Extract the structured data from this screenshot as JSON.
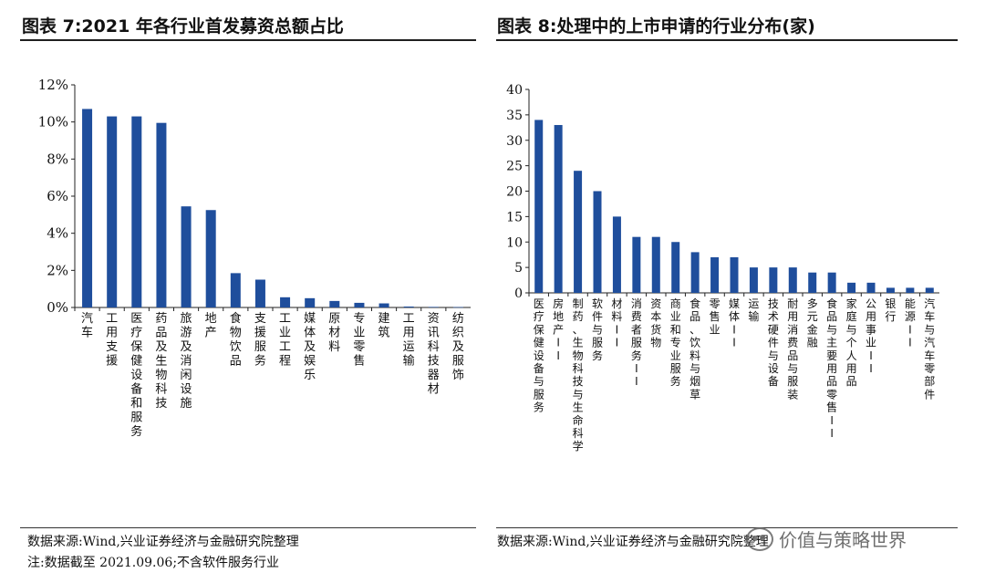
{
  "left_panel": {
    "title": "图表 7:2021 年各行业首发募资总额占比",
    "source": "数据来源:Wind,兴业证券经济与金融研究院整理",
    "note": "注:数据截至 2021.09.06;不含软件服务行业"
  },
  "right_panel": {
    "title": "图表 8:处理中的上市申请的行业分布(家)",
    "source": "数据来源:Wind,兴业证券经济与金融研究院整理"
  },
  "watermark": {
    "text": "价值与策略世界"
  },
  "colors": {
    "bar": "#1f4e9c",
    "axis": "#222222",
    "text": "#111111"
  },
  "chart_data": [
    {
      "type": "bar",
      "title": "2021 年各行业首发募资总额占比",
      "categories": [
        "汽车",
        "工用支援",
        "医疗保健设备和服务",
        "药品及生物科技",
        "旅游及消闲设施",
        "地产",
        "食物饮品",
        "支援服务",
        "工业工程",
        "媒体及娱乐",
        "原材料",
        "专业零售",
        "建筑",
        "工用运输",
        "资讯科技器材",
        "纺织及服饰"
      ],
      "values": [
        10.7,
        10.3,
        10.3,
        9.95,
        5.45,
        5.25,
        1.85,
        1.5,
        0.55,
        0.5,
        0.35,
        0.25,
        0.22,
        0.05,
        0.03,
        0.02
      ],
      "ylim": [
        0,
        12
      ],
      "yticks": [
        0,
        2,
        4,
        6,
        8,
        10,
        12
      ],
      "ytick_labels": [
        "0%",
        "2%",
        "4%",
        "6%",
        "8%",
        "10%",
        "12%"
      ],
      "xlabel": "",
      "ylabel": "",
      "grid": false
    },
    {
      "type": "bar",
      "title": "处理中的上市申请的行业分布(家)",
      "categories": [
        "医疗保健设备与服务",
        "房地产II",
        "制药、生物科技与生命科学",
        "软件与服务",
        "材料II",
        "消费者服务II",
        "资本货物",
        "商业和专业服务",
        "食品、饮料与烟草",
        "零售业",
        "媒体II",
        "运输",
        "技术硬件与设备",
        "耐用消费品与服装",
        "多元金融",
        "食品与主要用品零售II",
        "家庭与个人用品",
        "公用事业II",
        "银行",
        "能源II",
        "汽车与汽车零部件"
      ],
      "values": [
        34,
        33,
        24,
        20,
        15,
        11,
        11,
        10,
        8,
        7,
        7,
        5,
        5,
        5,
        4,
        4,
        2,
        2,
        1,
        1,
        1
      ],
      "ylim": [
        0,
        40
      ],
      "yticks": [
        0,
        5,
        10,
        15,
        20,
        25,
        30,
        35,
        40
      ],
      "ytick_labels": [
        "0",
        "5",
        "10",
        "15",
        "20",
        "25",
        "30",
        "35",
        "40"
      ],
      "xlabel": "",
      "ylabel": "",
      "grid": false
    }
  ]
}
